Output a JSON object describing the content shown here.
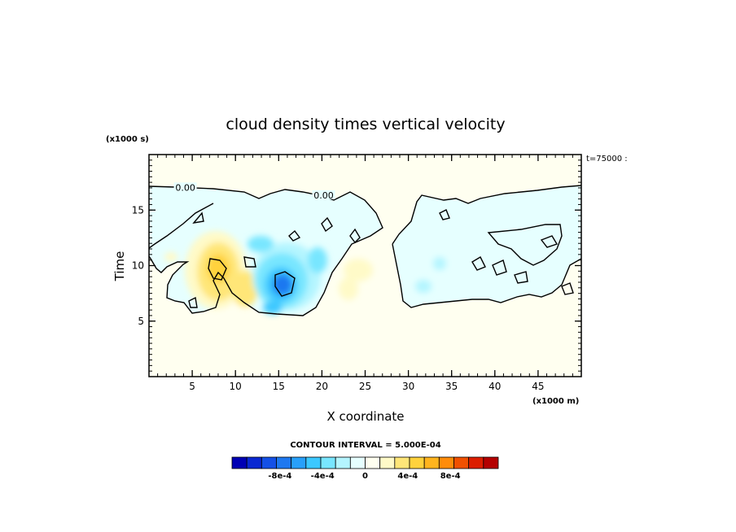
{
  "chart_data": {
    "type": "heatmap",
    "title": "cloud density times vertical velocity",
    "xlabel": "X coordinate",
    "ylabel": "Time",
    "x_unit_label": "(x1000 m)",
    "y_unit_label": "(x1000 s)",
    "time_stamp": "t=75000 :",
    "xlim": [
      0,
      50
    ],
    "ylim": [
      0,
      20
    ],
    "x_ticks": [
      5,
      10,
      15,
      20,
      25,
      30,
      35,
      40,
      45
    ],
    "x_tick_labels": [
      "5",
      "10",
      "15",
      "20",
      "25",
      "30",
      "35",
      "40",
      "45"
    ],
    "y_ticks": [
      5,
      10,
      15
    ],
    "y_tick_labels": [
      "5",
      "10",
      "15"
    ],
    "contour_labels": [
      {
        "text": "0.00",
        "x": 4.2,
        "y": 16.9
      },
      {
        "text": "0.00",
        "x": 20.2,
        "y": 16.2
      }
    ],
    "contour_interval_label": "CONTOUR INTERVAL = 5.000E-04",
    "colorbar": {
      "colors": [
        "#0000b4",
        "#0a28d2",
        "#1450e6",
        "#1e78f0",
        "#28a0fa",
        "#3cc8ff",
        "#78e6ff",
        "#b4f5ff",
        "#e6ffff",
        "#fffff0",
        "#fffac8",
        "#ffe678",
        "#ffd23c",
        "#ffb41e",
        "#ff8c0a",
        "#f05000",
        "#dc1e00",
        "#b40000"
      ],
      "tick_labels": [
        "-8e-4",
        "-4e-4",
        "0",
        "4e-4",
        "8e-4"
      ],
      "tick_values": [
        -0.0008,
        -0.0004,
        0,
        0.0004,
        0.0008
      ],
      "range": [
        -0.00125,
        0.00125
      ]
    },
    "features": [
      {
        "name": "positive-max",
        "x": 8.0,
        "y": 9.2,
        "value": 0.0008
      },
      {
        "name": "negative-min",
        "x": 15.8,
        "y": 8.3,
        "value": -0.0008
      },
      {
        "name": "weak-positive",
        "x": 23.5,
        "y": 8.5,
        "value": 0.0002
      },
      {
        "name": "weak-negative",
        "x": 31.0,
        "y": 8.0,
        "value": -0.0002
      }
    ]
  }
}
